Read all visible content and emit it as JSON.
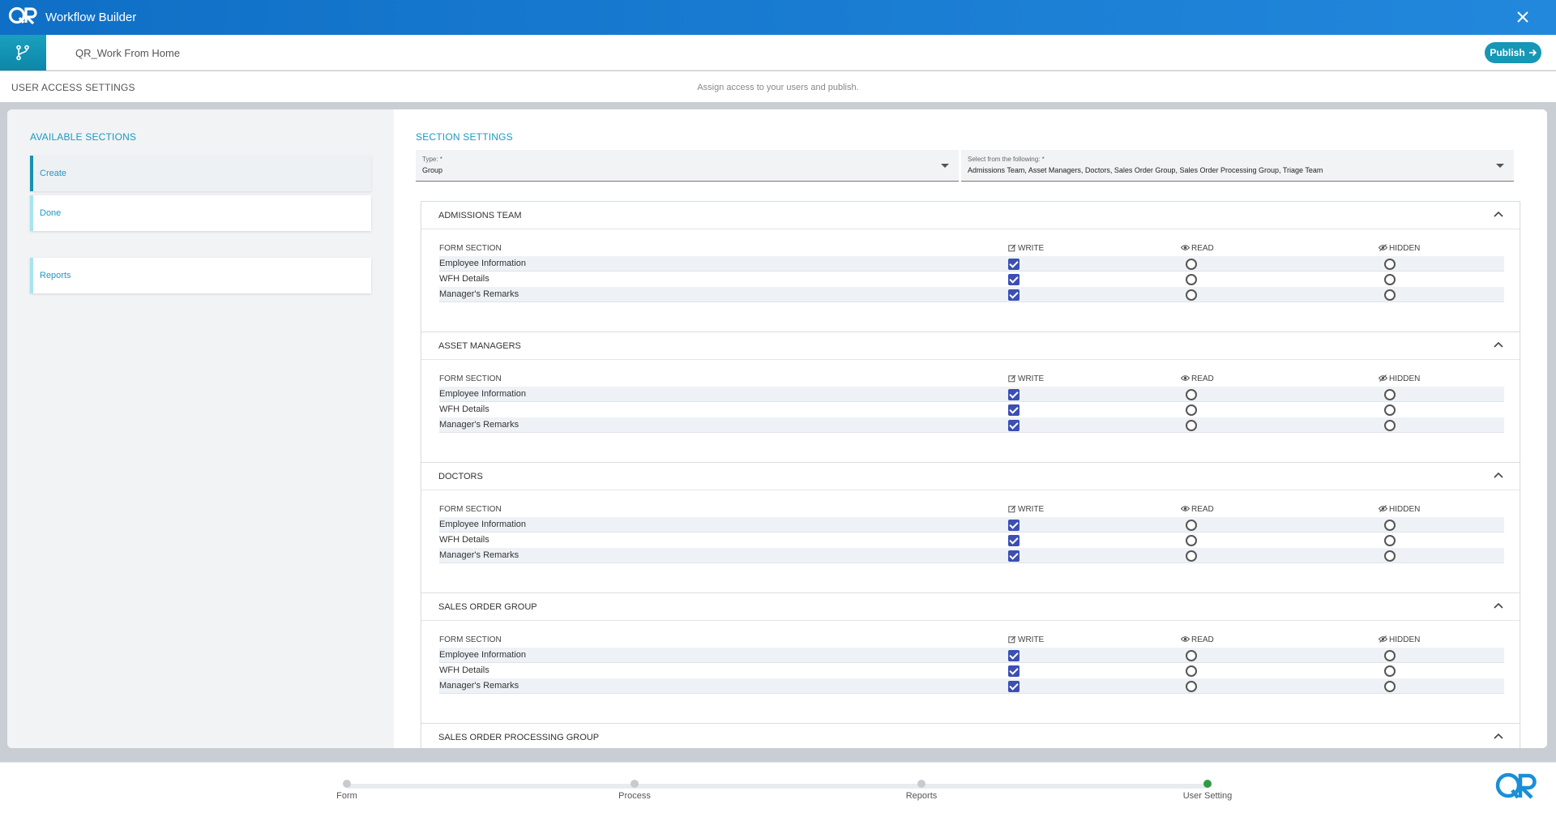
{
  "titlebar": {
    "title": "Workflow Builder",
    "logo": "qr-logo",
    "close_icon": "close-icon"
  },
  "toolbar": {
    "workflow_name": "QR_Work From Home",
    "publish_label": "Publish"
  },
  "settings": {
    "heading": "USER ACCESS SETTINGS",
    "hint": "Assign access to your users and publish."
  },
  "available": {
    "title": "AVAILABLE SECTIONS",
    "items": [
      {
        "label": "Create",
        "active": true
      },
      {
        "label": "Done",
        "active": false
      },
      {
        "label": "Reports",
        "active": false
      }
    ]
  },
  "section_settings": {
    "title": "SECTION SETTINGS",
    "type_field": {
      "label": "Type: *",
      "value": "Group"
    },
    "select_field": {
      "label": "Select from the following: *",
      "value": "Admissions Team, Asset Managers, Doctors, Sales Order Group, Sales Order Processing Group, Triage Team"
    },
    "columns": {
      "section": "FORM SECTION",
      "write": "WRITE",
      "read": "READ",
      "hidden": "HIDDEN"
    },
    "groups": [
      {
        "name": "ADMISSIONS TEAM",
        "rows": [
          {
            "section": "Employee Information",
            "access": "write"
          },
          {
            "section": "WFH Details",
            "access": "write"
          },
          {
            "section": "Manager's Remarks",
            "access": "write"
          }
        ]
      },
      {
        "name": "ASSET MANAGERS",
        "rows": [
          {
            "section": "Employee Information",
            "access": "write"
          },
          {
            "section": "WFH Details",
            "access": "write"
          },
          {
            "section": "Manager's Remarks",
            "access": "write"
          }
        ]
      },
      {
        "name": "DOCTORS",
        "rows": [
          {
            "section": "Employee Information",
            "access": "write"
          },
          {
            "section": "WFH Details",
            "access": "write"
          },
          {
            "section": "Manager's Remarks",
            "access": "write"
          }
        ]
      },
      {
        "name": "SALES ORDER GROUP",
        "rows": [
          {
            "section": "Employee Information",
            "access": "write"
          },
          {
            "section": "WFH Details",
            "access": "write"
          },
          {
            "section": "Manager's Remarks",
            "access": "write"
          }
        ]
      },
      {
        "name": "SALES ORDER PROCESSING GROUP",
        "rows": []
      }
    ]
  },
  "stepper": {
    "steps": [
      {
        "label": "Form",
        "done": false
      },
      {
        "label": "Process",
        "done": false
      },
      {
        "label": "Reports",
        "done": false
      },
      {
        "label": "User Setting",
        "done": true
      }
    ]
  },
  "colors": {
    "brand": "#1a8fd6",
    "accent": "#1697b5",
    "checkbox": "#3b4fb4",
    "step_done": "#2f9b43"
  }
}
